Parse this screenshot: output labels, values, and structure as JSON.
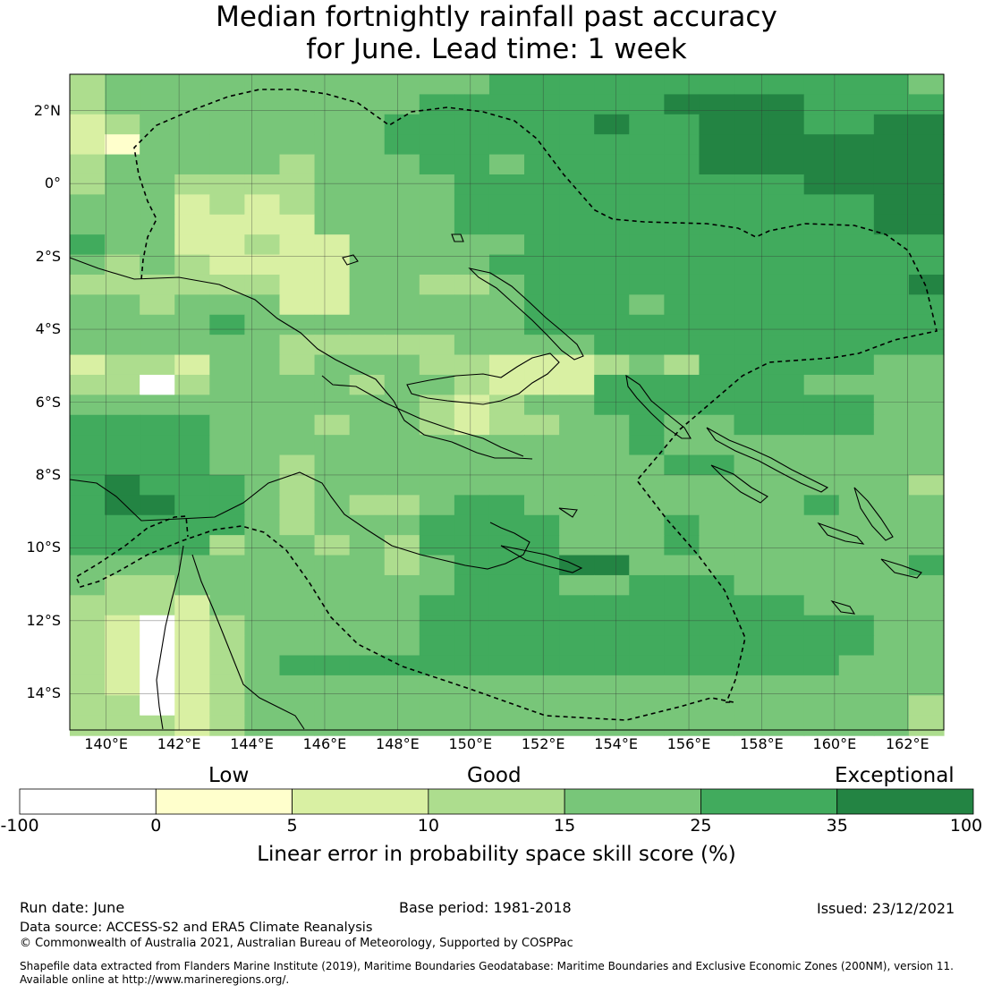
{
  "title": {
    "line1": "Median fortnightly rainfall past accuracy",
    "line2": "for June. Lead time: 1 week"
  },
  "map": {
    "lat_labels": [
      "2°N",
      "0°",
      "2°S",
      "4°S",
      "6°S",
      "8°S",
      "10°S",
      "12°S",
      "14°S"
    ],
    "lon_labels": [
      "140°E",
      "142°E",
      "144°E",
      "146°E",
      "148°E",
      "150°E",
      "152°E",
      "154°E",
      "156°E",
      "158°E",
      "160°E",
      "162°E"
    ],
    "lat_range": [
      -15,
      3
    ],
    "lon_range": [
      139,
      163
    ],
    "gridlines": true,
    "grid_resolution_deg": 0.8,
    "skill_grid_rows": [
      "3444444444445555555555554",
      "3444444444555555566665555",
      "2344444445555556556665566",
      "2144444445555555556666666",
      "3444443444554555556666666",
      "3443333444455555555556666",
      "4442323444455555555555566",
      "4442222444455555555555566",
      "5442232244444555555555555",
      "4343222244445555555555555",
      "3333332244334555555555556",
      "4434442244444555455555555",
      "4444544444444555555555555",
      "4444443333344445555555555",
      "2332443444332223435555544",
      "3303444434432225555554444",
      "4444444444323445555555544",
      "5555444344323344544555544",
      "5555444444444444544444444",
      "5555443444444444455444444",
      "5655543444444444444444443",
      "5665543433455444444445444",
      "5555543444555544454444444",
      "5555344343555544454444444",
      "4444444443455566444444445",
      "4334444444455544555444444",
      "3332444444555555555554444",
      "3202344444555555555555544",
      "3202344444555555555555544",
      "3202345555555555555555444",
      "3202344444444444444444444",
      "3302344444444444444444443",
      "3332344444444444444444443"
    ],
    "colors": {
      "class_0": "#ffffff",
      "class_1": "#ffffcc",
      "class_2": "#d9f0a3",
      "class_3": "#addd8e",
      "class_4": "#78c679",
      "class_5": "#41ab5d",
      "class_6": "#238443",
      "coastline": "#000000",
      "boundary": "#000000"
    }
  },
  "colorbar": {
    "category_labels": [
      "Low",
      "Good",
      "Exceptional"
    ],
    "ticks": [
      "-100",
      "0",
      "5",
      "10",
      "15",
      "25",
      "35",
      "100"
    ],
    "bins": [
      {
        "from": -100,
        "to": 0,
        "color": "#ffffff"
      },
      {
        "from": 0,
        "to": 5,
        "color": "#ffffcc"
      },
      {
        "from": 5,
        "to": 10,
        "color": "#d9f0a3"
      },
      {
        "from": 10,
        "to": 15,
        "color": "#addd8e"
      },
      {
        "from": 15,
        "to": 25,
        "color": "#78c679"
      },
      {
        "from": 25,
        "to": 35,
        "color": "#41ab5d"
      },
      {
        "from": 35,
        "to": 100,
        "color": "#238443"
      }
    ],
    "axis_label": "Linear error in probability space skill score (%)"
  },
  "footer": {
    "run_date": "Run date: June",
    "base_period": "Base period: 1981-2018",
    "issued": "Issued: 23/12/2021",
    "data_source": "Data source: ACCESS-S2 and ERA5 Climate Reanalysis",
    "copyright": "© Commonwealth of Australia 2021, Australian Bureau of Meteorology, Supported by COSPPac",
    "shapefile_line1": "Shapefile data extracted from Flanders Marine Institute (2019), Maritime Boundaries Geodatabase: Maritime Boundaries and Exclusive Economic Zones (200NM), version 11.",
    "shapefile_line2": "Available online at http://www.marineregions.org/."
  }
}
